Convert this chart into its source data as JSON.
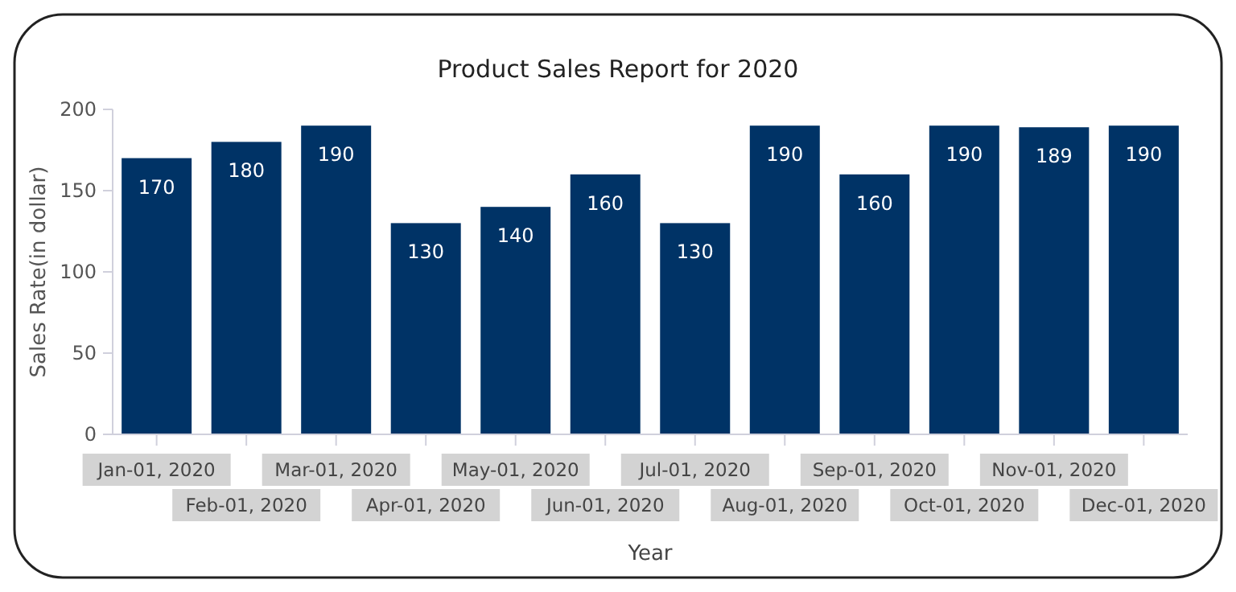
{
  "chart_data": {
    "type": "bar",
    "title": "Product Sales Report for 2020",
    "xlabel": "Year",
    "ylabel": "Sales Rate(in dollar)",
    "categories": [
      "Jan-01, 2020",
      "Feb-01, 2020",
      "Mar-01, 2020",
      "Apr-01, 2020",
      "May-01, 2020",
      "Jun-01, 2020",
      "Jul-01, 2020",
      "Aug-01, 2020",
      "Sep-01, 2020",
      "Oct-01, 2020",
      "Nov-01, 2020",
      "Dec-01, 2020"
    ],
    "values": [
      170,
      180,
      190,
      130,
      140,
      160,
      130,
      190,
      160,
      190,
      189,
      190
    ],
    "color": "#003366",
    "ylim": [
      0,
      200
    ],
    "yticks": [
      0,
      50,
      100,
      150,
      200
    ],
    "data_labels": true
  }
}
